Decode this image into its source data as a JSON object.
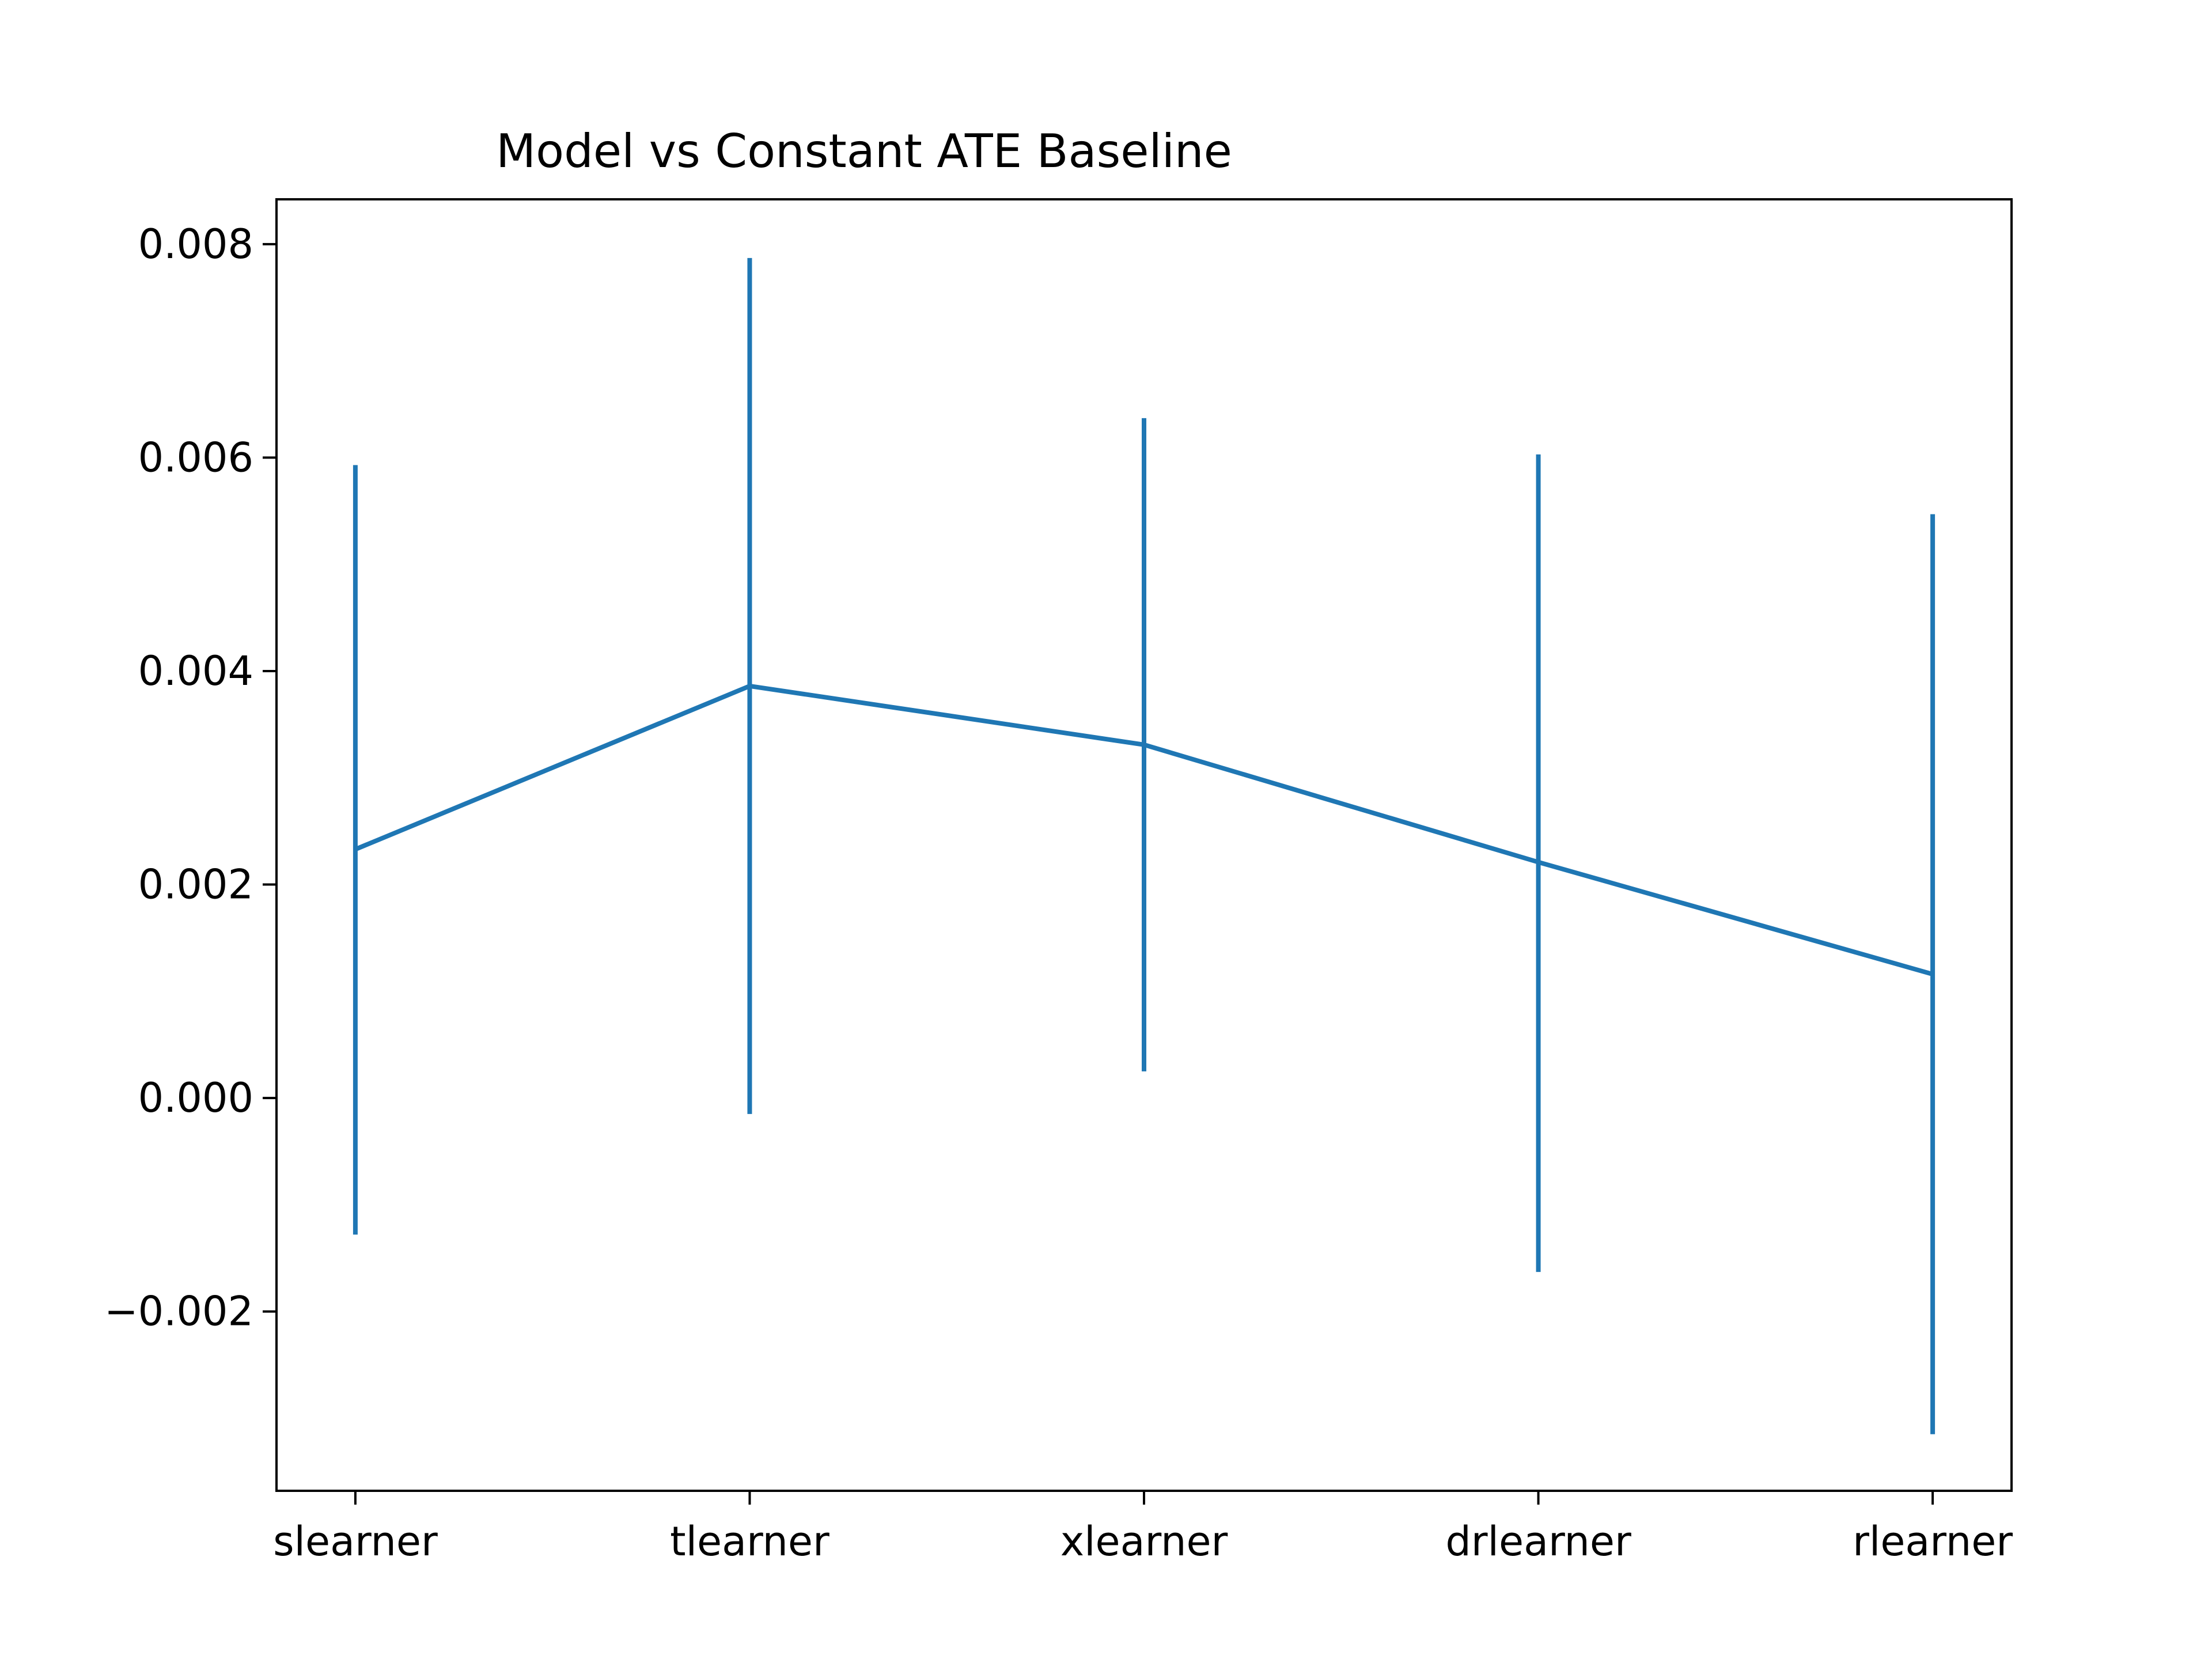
{
  "chart_data": {
    "type": "line",
    "title": "Model vs Constant ATE Baseline",
    "xlabel": "",
    "ylabel": "",
    "categories": [
      "slearner",
      "tlearner",
      "xlearner",
      "drlearner",
      "rlearner"
    ],
    "series": [
      {
        "values": [
          0.00233,
          0.00386,
          0.00331,
          0.00221,
          0.00116
        ],
        "error_lower": [
          -0.00128,
          -0.00015,
          0.00025,
          -0.00163,
          -0.00315
        ],
        "error_upper": [
          0.00593,
          0.00787,
          0.00637,
          0.00603,
          0.00547
        ]
      }
    ],
    "ylim": [
      -0.00368,
      0.00842
    ],
    "yticks": [
      -0.002,
      0.0,
      0.002,
      0.004,
      0.006,
      0.008
    ],
    "ytick_labels": [
      "−0.002",
      "0.000",
      "0.002",
      "0.004",
      "0.006",
      "0.008"
    ],
    "grid": false,
    "legend": "none",
    "colors": {
      "series": "#1f77b4",
      "axes": "#000000",
      "background": "#ffffff"
    }
  }
}
